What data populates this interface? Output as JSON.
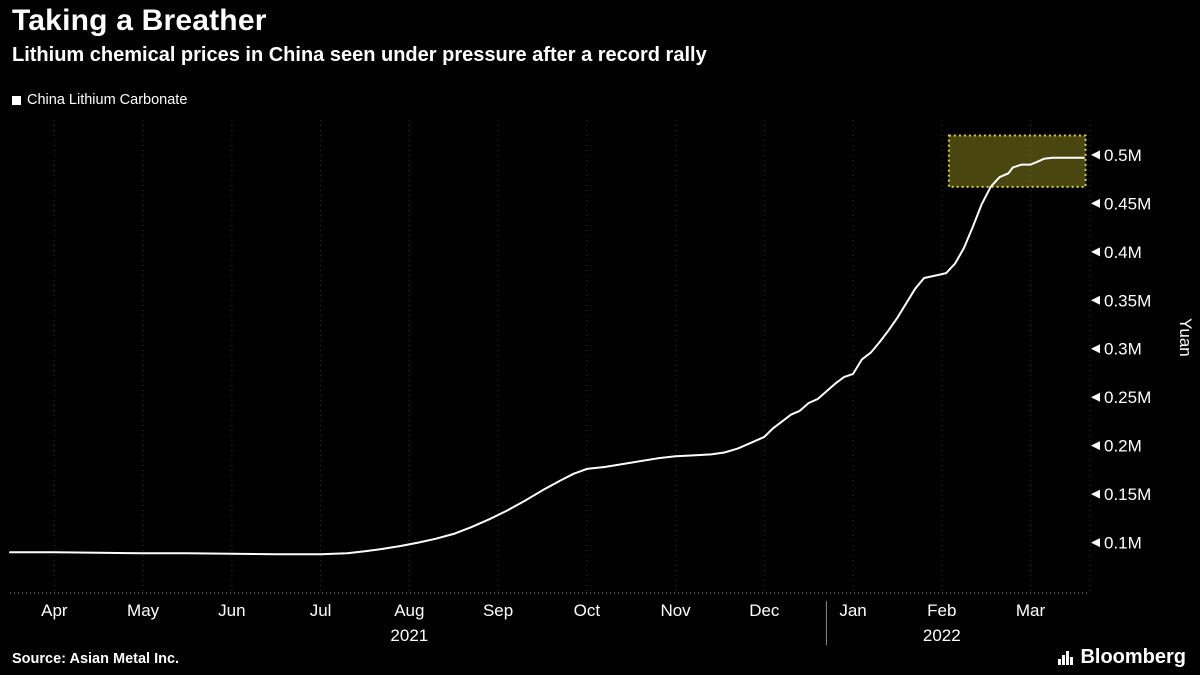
{
  "header": {
    "title": "Taking a Breather",
    "subtitle": "Lithium chemical prices in China seen under pressure after a record rally"
  },
  "legend": {
    "label": "China Lithium Carbonate",
    "marker_color": "#ffffff"
  },
  "footer": {
    "source": "Source: Asian Metal Inc.",
    "brand": "Bloomberg"
  },
  "colors": {
    "background": "#000000",
    "line": "#ffffff",
    "grid": "#333333",
    "axis": "#9a9a9a",
    "highlight_fill": "rgba(195,185,40,0.38)",
    "highlight_border": "#d9d32b",
    "text": "#ffffff"
  },
  "chart_data": {
    "type": "line",
    "title": "Taking a Breather",
    "subtitle": "Lithium chemical prices in China seen under pressure after a record rally",
    "series_name": "China Lithium Carbonate",
    "ylabel": "Yuan",
    "value_unit": "million yuan",
    "x_unit": "months since 2021-04-01",
    "xlim": [
      0,
      12.17
    ],
    "ylim": [
      0.048,
      0.536
    ],
    "grid": "vertical-dotted",
    "legend_position": "top-left",
    "axis_side": "right",
    "y_ticks": [
      0.1,
      0.15,
      0.2,
      0.25,
      0.3,
      0.35,
      0.4,
      0.45,
      0.5
    ],
    "y_tick_labels": [
      "0.1M",
      "0.15M",
      "0.2M",
      "0.25M",
      "0.3M",
      "0.35M",
      "0.4M",
      "0.45M",
      "0.5M"
    ],
    "x_ticks": [
      {
        "t": 0.5,
        "label": "Apr"
      },
      {
        "t": 1.5,
        "label": "May"
      },
      {
        "t": 2.5,
        "label": "Jun"
      },
      {
        "t": 3.5,
        "label": "Jul"
      },
      {
        "t": 4.5,
        "label": "Aug"
      },
      {
        "t": 5.5,
        "label": "Sep"
      },
      {
        "t": 6.5,
        "label": "Oct"
      },
      {
        "t": 7.5,
        "label": "Nov"
      },
      {
        "t": 8.5,
        "label": "Dec"
      },
      {
        "t": 9.5,
        "label": "Jan"
      },
      {
        "t": 10.5,
        "label": "Feb"
      },
      {
        "t": 11.5,
        "label": "Mar"
      }
    ],
    "year_labels": [
      {
        "t": 4.5,
        "label": "2021"
      },
      {
        "t": 10.5,
        "label": "2022"
      }
    ],
    "year_divider_t": 9.2,
    "points": [
      [
        0,
        0.09
      ],
      [
        0.5,
        0.09
      ],
      [
        1,
        0.0895
      ],
      [
        1.5,
        0.089
      ],
      [
        2,
        0.089
      ],
      [
        2.5,
        0.0885
      ],
      [
        3,
        0.088
      ],
      [
        3.5,
        0.088
      ],
      [
        3.8,
        0.089
      ],
      [
        4,
        0.091
      ],
      [
        4.2,
        0.0935
      ],
      [
        4.4,
        0.0965
      ],
      [
        4.6,
        0.1
      ],
      [
        4.8,
        0.104
      ],
      [
        5,
        0.109
      ],
      [
        5.2,
        0.116
      ],
      [
        5.4,
        0.124
      ],
      [
        5.6,
        0.133
      ],
      [
        5.8,
        0.143
      ],
      [
        6,
        0.154
      ],
      [
        6.2,
        0.164
      ],
      [
        6.35,
        0.171
      ],
      [
        6.5,
        0.176
      ],
      [
        6.7,
        0.178
      ],
      [
        6.9,
        0.181
      ],
      [
        7.1,
        0.184
      ],
      [
        7.3,
        0.187
      ],
      [
        7.5,
        0.189
      ],
      [
        7.7,
        0.19
      ],
      [
        7.9,
        0.191
      ],
      [
        8.05,
        0.193
      ],
      [
        8.2,
        0.197
      ],
      [
        8.35,
        0.203
      ],
      [
        8.5,
        0.209
      ],
      [
        8.6,
        0.218
      ],
      [
        8.7,
        0.225
      ],
      [
        8.8,
        0.232
      ],
      [
        8.9,
        0.236
      ],
      [
        9,
        0.244
      ],
      [
        9.1,
        0.248
      ],
      [
        9.2,
        0.256
      ],
      [
        9.3,
        0.264
      ],
      [
        9.4,
        0.271
      ],
      [
        9.5,
        0.274
      ],
      [
        9.6,
        0.289
      ],
      [
        9.7,
        0.296
      ],
      [
        9.8,
        0.307
      ],
      [
        9.9,
        0.319
      ],
      [
        10,
        0.332
      ],
      [
        10.1,
        0.347
      ],
      [
        10.2,
        0.362
      ],
      [
        10.3,
        0.373
      ],
      [
        10.45,
        0.376
      ],
      [
        10.55,
        0.378
      ],
      [
        10.65,
        0.388
      ],
      [
        10.75,
        0.404
      ],
      [
        10.85,
        0.426
      ],
      [
        10.95,
        0.449
      ],
      [
        11.05,
        0.467
      ],
      [
        11.15,
        0.477
      ],
      [
        11.25,
        0.481
      ],
      [
        11.3,
        0.487
      ],
      [
        11.4,
        0.49
      ],
      [
        11.5,
        0.49
      ],
      [
        11.58,
        0.493
      ],
      [
        11.65,
        0.496
      ],
      [
        11.75,
        0.497
      ],
      [
        12.1,
        0.497
      ]
    ],
    "highlight_box": {
      "t0": 10.58,
      "t1": 12.12,
      "v0": 0.467,
      "v1": 0.52
    }
  }
}
